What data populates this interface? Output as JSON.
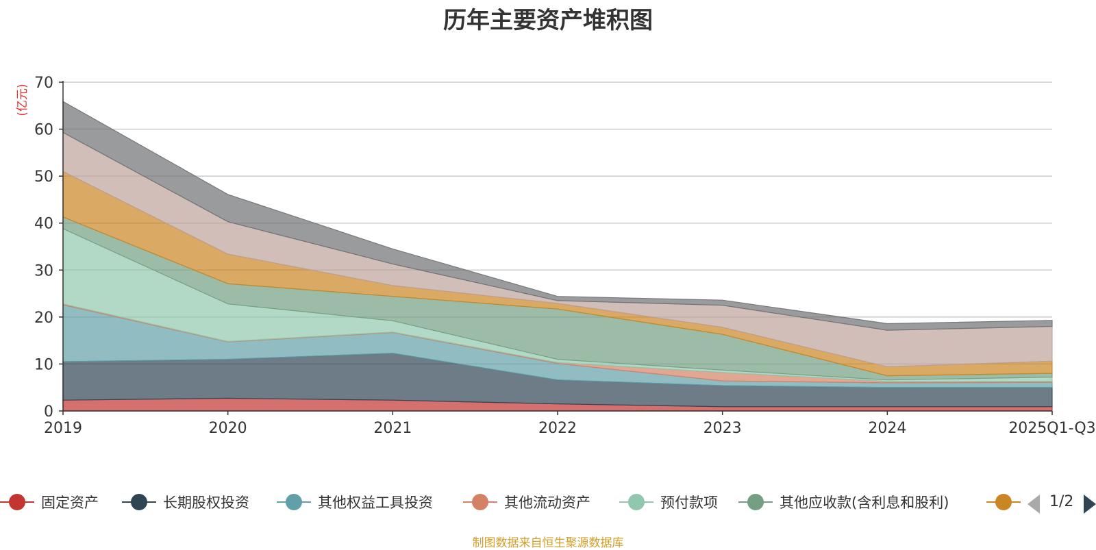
{
  "chart_data": {
    "type": "area",
    "stacked": true,
    "title": "历年主要资产堆积图",
    "ylabel": "(亿元)",
    "ylim": [
      0,
      70
    ],
    "yticks": [
      0,
      10,
      20,
      30,
      40,
      50,
      60,
      70
    ],
    "categories": [
      "2019",
      "2020",
      "2021",
      "2022",
      "2023",
      "2024",
      "2025Q1-Q3"
    ],
    "series": [
      {
        "name": "固定资产",
        "color": "#c23531",
        "values": [
          2.3,
          2.7,
          2.3,
          1.5,
          0.9,
          0.9,
          0.9
        ]
      },
      {
        "name": "长期股权投资",
        "color": "#2f4554",
        "values": [
          8.2,
          8.3,
          10.0,
          5.1,
          4.5,
          4.1,
          4.1
        ]
      },
      {
        "name": "其他权益工具投资",
        "color": "#61a0a8",
        "values": [
          12.1,
          3.7,
          4.4,
          3.5,
          1.0,
          1.0,
          1.1
        ]
      },
      {
        "name": "其他流动资产",
        "color": "#d48265",
        "values": [
          0.2,
          0.1,
          0.1,
          0.2,
          1.8,
          0.3,
          0.2
        ]
      },
      {
        "name": "预付款项",
        "color": "#91c7ae",
        "values": [
          16.0,
          8.0,
          2.4,
          0.7,
          0.5,
          0.3,
          0.9
        ]
      },
      {
        "name": "其他应收款(含利息和股利)",
        "color": "#749f83",
        "values": [
          2.5,
          4.3,
          5.2,
          10.7,
          7.6,
          0.9,
          0.8
        ]
      },
      {
        "name": "",
        "color": "#ca8622",
        "values": [
          9.7,
          6.3,
          2.3,
          1.2,
          1.5,
          1.9,
          2.6
        ]
      },
      {
        "name": "",
        "color": "#bda29a",
        "values": [
          8.3,
          6.9,
          4.6,
          0.6,
          4.7,
          7.8,
          7.4
        ]
      },
      {
        "name": "",
        "color": "#6e7074",
        "values": [
          6.6,
          5.8,
          3.2,
          0.9,
          1.1,
          1.4,
          1.3
        ]
      }
    ]
  },
  "legend": {
    "visible_count": 7,
    "page": "1/2"
  },
  "footer": {
    "source": "制图数据来自恒生聚源数据库"
  }
}
